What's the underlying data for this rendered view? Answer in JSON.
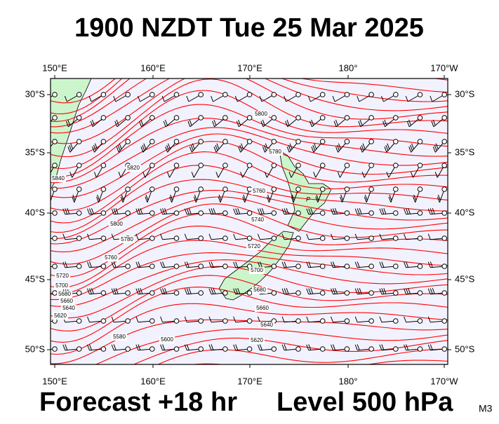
{
  "header": {
    "title": "1900 NZDT Tue 25 Mar 2025"
  },
  "map": {
    "lon_ticks": [
      "150°E",
      "160°E",
      "170°E",
      "180°",
      "170°W"
    ],
    "lat_ticks": [
      "30°S",
      "35°S",
      "40°S",
      "45°S",
      "50°S"
    ],
    "contour_labels": [
      "5800",
      "5780",
      "5760",
      "5740",
      "5720",
      "5700",
      "5680",
      "5660",
      "5640",
      "5620",
      "5600",
      "5580",
      "5840",
      "5820",
      "5800",
      "5780",
      "5760",
      "5720",
      "5700",
      "5680",
      "5660",
      "5640",
      "5620"
    ],
    "place_label": "P"
  },
  "footer": {
    "forecast": "Forecast +18 hr",
    "level": "Level 500 hPa",
    "model": "M3"
  }
}
